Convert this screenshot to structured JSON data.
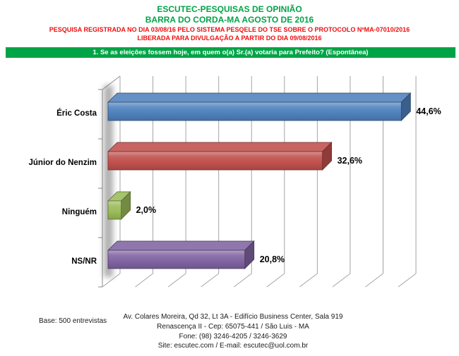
{
  "header": {
    "title_line1": "ESCUTEC-PESQUISAS DE OPINIÃO",
    "title_line2": "BARRA DO CORDA-MA AGOSTO DE 2016",
    "registration_line1": "PESQUISA REGISTRADA NO DIA 03/08/16 PELO SISTEMA PESQELE DO TSE SOBRE O PROTOCOLO NºMA-07010/2016",
    "registration_line2": "LIBERADA PARA DIVULGAÇÃO A PARTIR DO DIA 09/08/2016",
    "title_color": "#00A447",
    "registration_color": "#ED0F0F"
  },
  "question_banner": {
    "text": "1. Se as eleições fossem hoje, em quem o(a) Sr.(a) votaria para Prefeito? (Espontânea)",
    "background_color": "#00A447",
    "text_color": "#FFFFFF"
  },
  "chart_data": {
    "type": "bar",
    "orientation": "horizontal",
    "style": "3d",
    "categories": [
      "Éric Costa",
      "Júnior do Nenzim",
      "Ninguém",
      "NS/NR"
    ],
    "values": [
      44.6,
      32.6,
      2.0,
      20.8
    ],
    "value_labels": [
      "44,6%",
      "32,6%",
      "2,0%",
      "20,8%"
    ],
    "bar_colors": [
      "#4F81BD",
      "#C0504D",
      "#9BBB59",
      "#8064A2"
    ],
    "xlim": [
      0,
      45
    ],
    "gridline_step": 5,
    "grid": true,
    "legend": false,
    "title": "",
    "xlabel": "",
    "ylabel": ""
  },
  "footer": {
    "base_text": "Base: 500 entrevistas",
    "address_lines": [
      "Av. Colares Moreira, Qd 32, Lt 3A - Edifício Business Center, Sala 919",
      "Renascença II - Cep: 65075-441 / São Luis - MA",
      "Fone: (98) 3246-4205 / 3246-3629",
      "Site: escutec.com / E-mail: escutec@uol.com.br"
    ]
  }
}
